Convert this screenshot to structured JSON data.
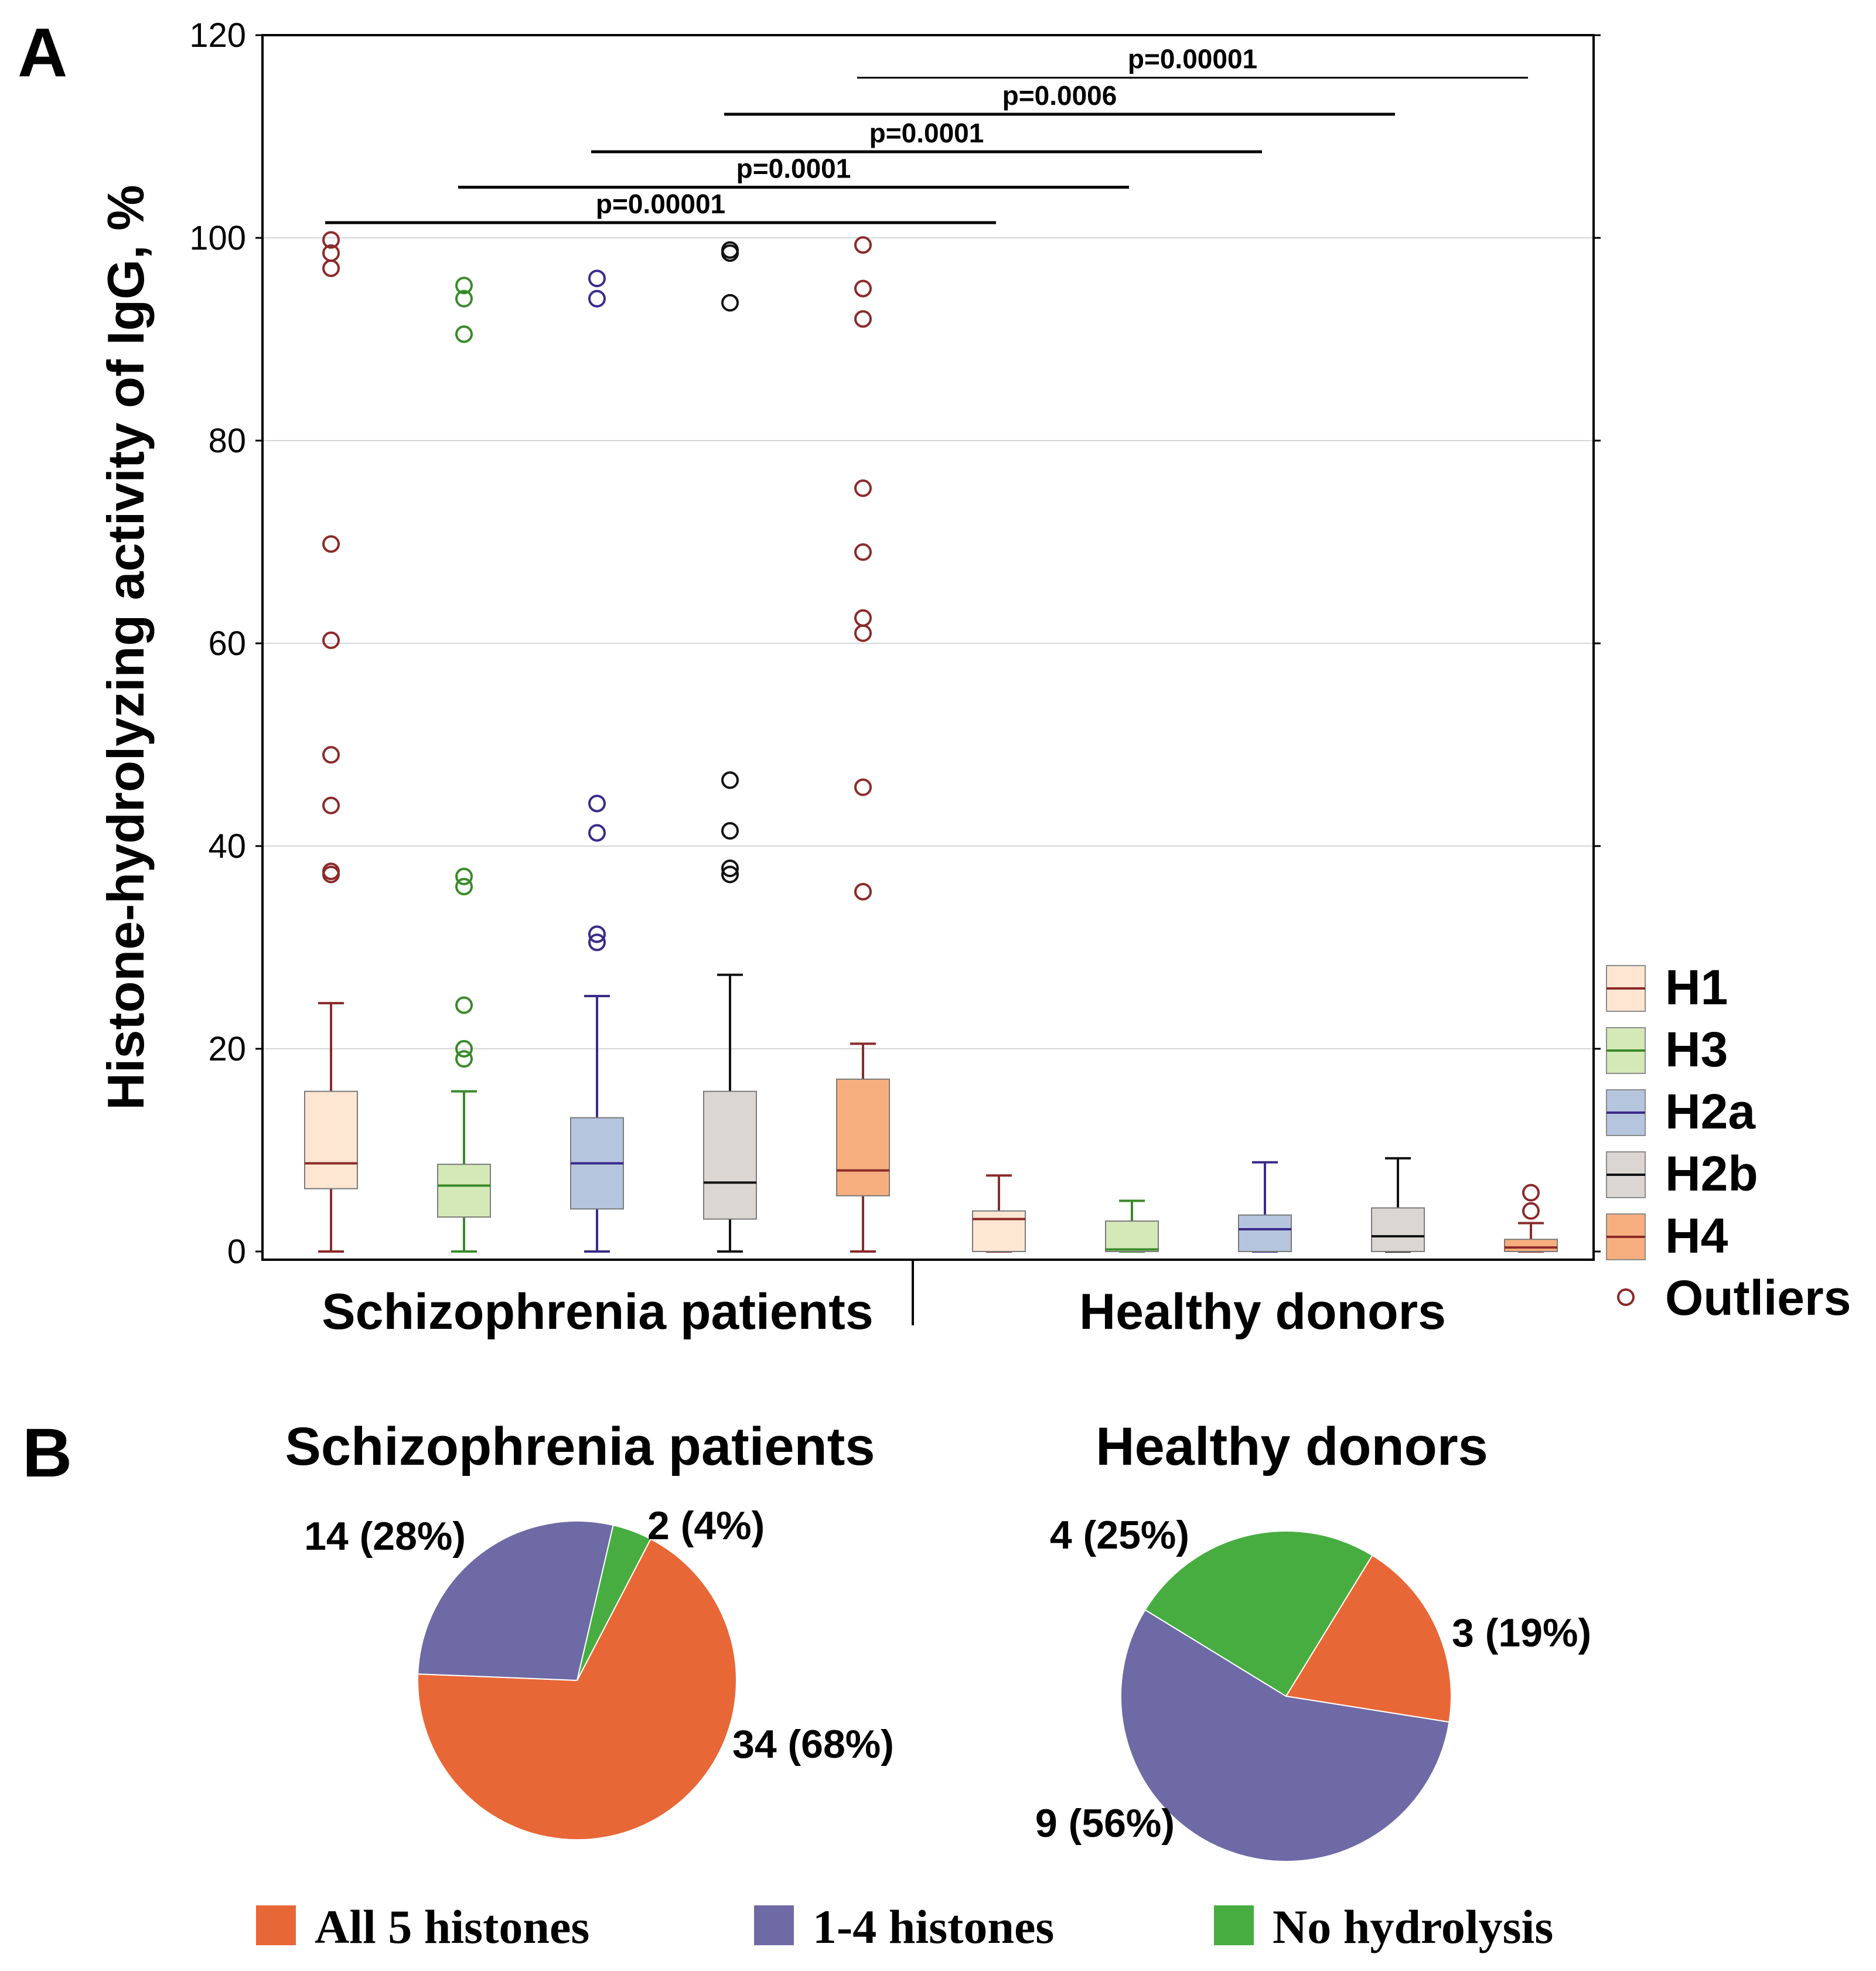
{
  "panel_a": {
    "label": "A"
  },
  "panel_b": {
    "label": "B"
  },
  "chart_data": [
    {
      "type": "box",
      "ylabel": "Histone-hydrolyzing activity of IgG, %",
      "ylim": [
        0,
        120
      ],
      "yticks": [
        "0",
        "20",
        "40",
        "60",
        "80",
        "100",
        "120"
      ],
      "grid": true,
      "groups": [
        "Schizophrenia patients",
        "Healthy donors"
      ],
      "series": [
        {
          "name": "H1",
          "color": "#fde6d2",
          "line": "#8b2a2a",
          "boxes": [
            {
              "whisker_low": 0,
              "q1": 6.2,
              "median": 8.7,
              "q3": 15.8,
              "whisker_high": 24.5,
              "outliers": [
                37.2,
                37.5,
                44,
                49,
                60.3,
                69.8,
                97,
                98.5,
                99.8
              ]
            },
            {
              "whisker_low": 0,
              "q1": 0,
              "median": 3.2,
              "q3": 4,
              "whisker_high": 7.5,
              "outliers": []
            }
          ]
        },
        {
          "name": "H3",
          "color": "#d5e8b8",
          "line": "#3a8a2a",
          "boxes": [
            {
              "whisker_low": 0,
              "q1": 3.4,
              "median": 6.5,
              "q3": 8.6,
              "whisker_high": 15.8,
              "outliers": [
                19,
                20,
                24.3,
                36,
                37,
                90.5,
                94,
                95.3
              ]
            },
            {
              "whisker_low": 0,
              "q1": 0,
              "median": 0.2,
              "q3": 3,
              "whisker_high": 5,
              "outliers": []
            }
          ]
        },
        {
          "name": "H2a",
          "color": "#b6c5de",
          "line": "#3a2a8a",
          "boxes": [
            {
              "whisker_low": 0,
              "q1": 4.2,
              "median": 8.7,
              "q3": 13.2,
              "whisker_high": 25.2,
              "outliers": [
                30.5,
                31.3,
                41.3,
                44.2,
                94,
                96
              ]
            },
            {
              "whisker_low": 0,
              "q1": 0,
              "median": 2.2,
              "q3": 3.6,
              "whisker_high": 8.8,
              "outliers": []
            }
          ]
        },
        {
          "name": "H2b",
          "color": "#dcd6d2",
          "line": "#111111",
          "boxes": [
            {
              "whisker_low": 0,
              "q1": 3.2,
              "median": 6.8,
              "q3": 15.8,
              "whisker_high": 27.3,
              "outliers": [
                37.2,
                37.8,
                41.5,
                46.5,
                93.6,
                98.5,
                98.8
              ]
            },
            {
              "whisker_low": 0,
              "q1": 0,
              "median": 1.5,
              "q3": 4.3,
              "whisker_high": 9.2,
              "outliers": []
            }
          ]
        },
        {
          "name": "H4",
          "color": "#f7ae7e",
          "line": "#8b2a2a",
          "boxes": [
            {
              "whisker_low": 0,
              "q1": 5.5,
              "median": 8,
              "q3": 17,
              "whisker_high": 20.5,
              "outliers": [
                35.5,
                45.8,
                61,
                62.5,
                69,
                75.3,
                92,
                95,
                99.3
              ]
            },
            {
              "whisker_low": 0,
              "q1": 0,
              "median": 0.4,
              "q3": 1.2,
              "whisker_high": 2.8,
              "outliers": [
                4,
                5.8
              ]
            }
          ]
        }
      ],
      "significance": [
        {
          "label": "p=0.00001",
          "from": "Schizophrenia patients H1",
          "to": "Healthy donors H1",
          "y": 101.5
        },
        {
          "label": "p=0.0001",
          "from": "Schizophrenia patients H3",
          "to": "Healthy donors H3",
          "y": 105
        },
        {
          "label": "p=0.0001",
          "from": "Schizophrenia patients H2a",
          "to": "Healthy donors H2a",
          "y": 108.5
        },
        {
          "label": "p=0.0006",
          "from": "Schizophrenia patients H2b",
          "to": "Healthy donors H2b",
          "y": 112.2
        },
        {
          "label": "p=0.00001",
          "from": "Schizophrenia patients H4",
          "to": "Healthy donors H4",
          "y": 115.8
        }
      ],
      "legend": [
        "H1",
        "H3",
        "H2a",
        "H2b",
        "H4",
        "Outliers"
      ],
      "legend_position": "right"
    },
    {
      "type": "pie",
      "title": "Schizophrenia patients",
      "slices": [
        {
          "name": "All 5 histones",
          "value": 34,
          "label": "34 (68%)"
        },
        {
          "name": "1-4 histones",
          "value": 14,
          "label": "14 (28%)"
        },
        {
          "name": "No hydrolysis",
          "value": 2,
          "label": "2 (4%)"
        }
      ]
    },
    {
      "type": "pie",
      "title": "Healthy donors",
      "slices": [
        {
          "name": "All 5 histones",
          "value": 3,
          "label": "3 (19%)"
        },
        {
          "name": "1-4 histones",
          "value": 9,
          "label": "9 (56%)"
        },
        {
          "name": "No hydrolysis",
          "value": 4,
          "label": "4 (25%)"
        }
      ]
    }
  ],
  "pie_legend": [
    {
      "name": "All 5 histones",
      "color": "#e86736"
    },
    {
      "name": "1-4 histones",
      "color": "#6e6aa6"
    },
    {
      "name": "No hydrolysis",
      "color": "#47ad41"
    }
  ]
}
